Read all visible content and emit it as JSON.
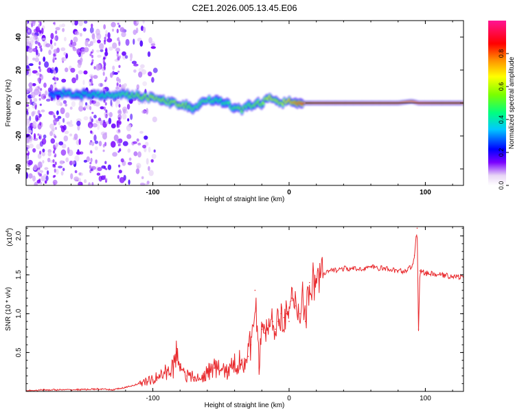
{
  "title": "C2E1.2026.005.13.45.E06",
  "chart_data": [
    {
      "type": "heatmap",
      "xlabel": "Height of straight line (km)",
      "ylabel": "Frequency (Hz)",
      "xlim": [
        -193,
        128
      ],
      "ylim": [
        -50,
        50
      ],
      "xticks": [
        -100,
        0,
        100
      ],
      "yticks": [
        -40,
        -20,
        0,
        20,
        40
      ],
      "colorbar": {
        "label": "Normalized spectral amplitude",
        "range": [
          0,
          1
        ],
        "ticks": [
          "0.0",
          "0.2",
          "0.4",
          "0.6",
          "0.8"
        ],
        "tick_values": [
          0,
          0.2,
          0.4,
          0.6,
          0.8
        ]
      },
      "ridge": {
        "x": [
          -175,
          -165,
          -150,
          -135,
          -120,
          -110,
          -100,
          -90,
          -80,
          -70,
          -60,
          -50,
          -40,
          -35,
          -30,
          -25,
          -20,
          -15,
          -10,
          -5,
          0,
          10,
          20,
          40,
          60,
          80,
          90,
          95,
          110,
          128
        ],
        "freq": [
          5,
          6,
          5,
          5,
          5,
          4,
          3,
          1,
          -1,
          -3,
          2,
          1,
          -3,
          -4,
          -2,
          -1,
          0,
          3,
          2,
          0,
          1,
          0,
          0,
          0,
          0,
          0,
          1,
          0,
          0,
          0
        ],
        "amplitude": [
          0.3,
          0.4,
          0.4,
          0.45,
          0.5,
          0.55,
          0.6,
          0.55,
          0.6,
          0.5,
          0.5,
          0.45,
          0.5,
          0.55,
          0.5,
          0.55,
          0.55,
          0.65,
          0.6,
          0.6,
          0.7,
          0.85,
          0.9,
          0.9,
          0.9,
          0.9,
          0.9,
          0.95,
          0.9,
          0.9
        ]
      }
    },
    {
      "type": "line",
      "xlabel": "Height of straight line (km)",
      "ylabel": "SNR (10 * v/v)",
      "y_scale_label": "(x10",
      "y_scale_exponent": "4",
      "xlim": [
        -193,
        128
      ],
      "ylim": [
        0,
        2.12
      ],
      "xticks": [
        -100,
        0,
        100
      ],
      "yticks": [
        0.5,
        1.0,
        1.5,
        2.0
      ],
      "ytick_labels": [
        "0.5",
        "1.0",
        "1.5",
        "2.0"
      ],
      "color": "#e8262a",
      "series": [
        {
          "name": "SNR",
          "x": [
            -193,
            -180,
            -160,
            -140,
            -130,
            -120,
            -110,
            -100,
            -95,
            -90,
            -85,
            -82,
            -80,
            -75,
            -70,
            -65,
            -60,
            -55,
            -50,
            -45,
            -40,
            -35,
            -30,
            -28,
            -25,
            -22,
            -20,
            -18,
            -15,
            -12,
            -10,
            -8,
            -6,
            -4,
            -2,
            0,
            2,
            5,
            8,
            10,
            12,
            15,
            20,
            25,
            30,
            40,
            50,
            60,
            70,
            80,
            85,
            90,
            92,
            94,
            95,
            96,
            100,
            110,
            120,
            128
          ],
          "y": [
            0.01,
            0.02,
            0.02,
            0.03,
            0.02,
            0.05,
            0.1,
            0.15,
            0.2,
            0.25,
            0.3,
            0.55,
            0.35,
            0.2,
            0.18,
            0.15,
            0.25,
            0.3,
            0.28,
            0.25,
            0.35,
            0.4,
            0.45,
            0.6,
            1.3,
            0.3,
            0.8,
            0.75,
            0.85,
            0.9,
            0.8,
            0.9,
            1.0,
            0.95,
            1.0,
            0.9,
            1.2,
            1.1,
            1.0,
            1.3,
            0.9,
            1.4,
            1.45,
            1.5,
            1.55,
            1.58,
            1.57,
            1.6,
            1.58,
            1.55,
            1.55,
            1.6,
            1.75,
            2.1,
            0.8,
            1.55,
            1.52,
            1.5,
            1.48,
            1.47
          ]
        }
      ]
    }
  ]
}
